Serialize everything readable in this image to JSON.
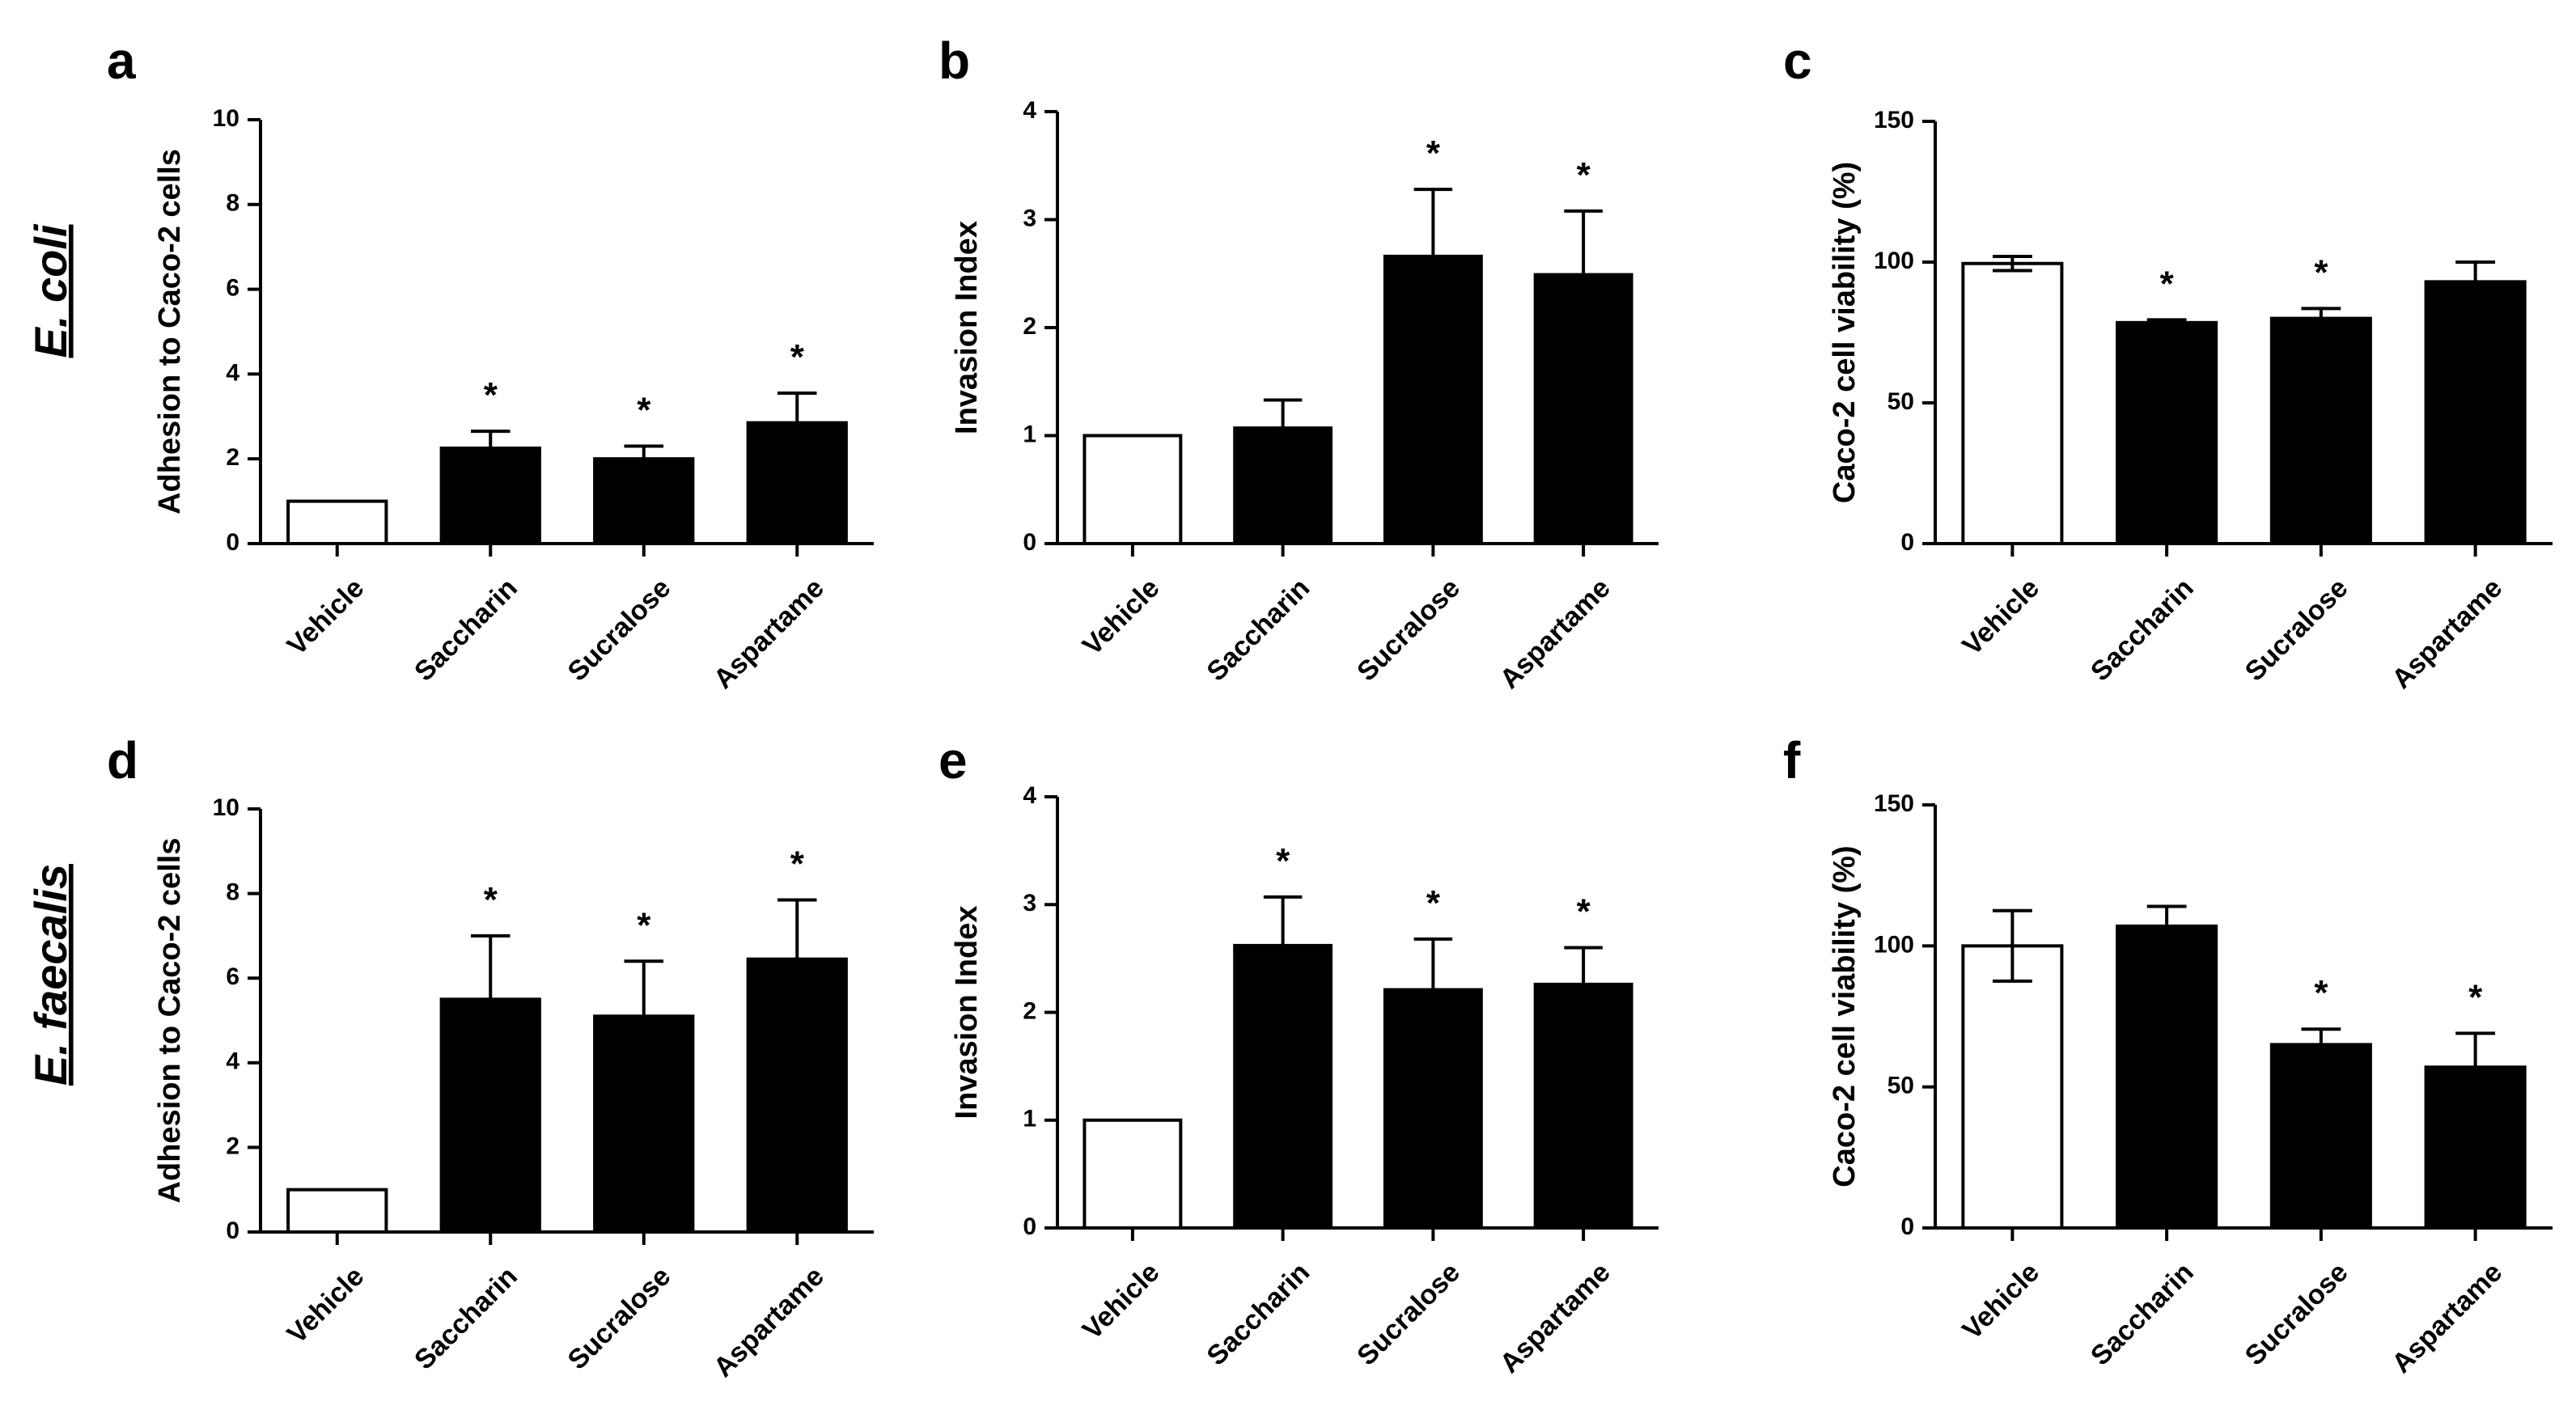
{
  "row_labels": [
    "E. coli",
    "E. faecalis"
  ],
  "chart_data": [
    {
      "type": "bar",
      "panel": "a",
      "row": 0,
      "title": "",
      "xlabel": "",
      "ylabel": "Adhesion to Caco-2 cells",
      "ylim": [
        0,
        10
      ],
      "yticks": [
        0,
        2,
        4,
        6,
        8,
        10
      ],
      "categories": [
        "Vehicle",
        "Saccharin",
        "Sucralose",
        "Aspartame"
      ],
      "values": [
        1.0,
        2.25,
        2.0,
        2.85
      ],
      "errors": [
        0,
        0.4,
        0.3,
        0.7
      ],
      "significant": [
        false,
        true,
        true,
        true
      ],
      "fill": [
        "#ffffff",
        "#000000",
        "#000000",
        "#000000"
      ],
      "marker": "*"
    },
    {
      "type": "bar",
      "panel": "b",
      "row": 0,
      "title": "",
      "xlabel": "",
      "ylabel": "Invasion Index",
      "ylim": [
        0,
        4
      ],
      "yticks": [
        0,
        1,
        2,
        3,
        4
      ],
      "categories": [
        "Vehicle",
        "Saccharin",
        "Sucralose",
        "Aspartame"
      ],
      "values": [
        1.0,
        1.07,
        2.66,
        2.49
      ],
      "errors": [
        0,
        0.26,
        0.62,
        0.59
      ],
      "significant": [
        false,
        false,
        true,
        true
      ],
      "fill": [
        "#ffffff",
        "#000000",
        "#000000",
        "#000000"
      ],
      "marker": "*"
    },
    {
      "type": "bar",
      "panel": "c",
      "row": 0,
      "title": "",
      "xlabel": "",
      "ylabel": "Caco-2 cell viability (%)",
      "ylim": [
        0,
        150
      ],
      "yticks": [
        0,
        50,
        100,
        150
      ],
      "categories": [
        "Vehicle",
        "Saccharin",
        "Sucralose",
        "Aspartame"
      ],
      "values": [
        99.5,
        78.5,
        80.0,
        93.0
      ],
      "errors": [
        2.5,
        1.0,
        3.5,
        7.0
      ],
      "significant": [
        false,
        true,
        true,
        false
      ],
      "fill": [
        "#ffffff",
        "#000000",
        "#000000",
        "#000000"
      ],
      "marker": "*"
    },
    {
      "type": "bar",
      "panel": "d",
      "row": 1,
      "title": "",
      "xlabel": "",
      "ylabel": "Adhesion to Caco-2 cells",
      "ylim": [
        0,
        10
      ],
      "yticks": [
        0,
        2,
        4,
        6,
        8,
        10
      ],
      "categories": [
        "Vehicle",
        "Saccharin",
        "Sucralose",
        "Aspartame"
      ],
      "values": [
        1.0,
        5.5,
        5.1,
        6.45
      ],
      "errors": [
        0,
        1.5,
        1.3,
        1.4
      ],
      "significant": [
        false,
        true,
        true,
        true
      ],
      "fill": [
        "#ffffff",
        "#000000",
        "#000000",
        "#000000"
      ],
      "marker": "*"
    },
    {
      "type": "bar",
      "panel": "e",
      "row": 1,
      "title": "",
      "xlabel": "",
      "ylabel": "Invasion Index",
      "ylim": [
        0,
        4
      ],
      "yticks": [
        0,
        1,
        2,
        3,
        4
      ],
      "categories": [
        "Vehicle",
        "Saccharin",
        "Sucralose",
        "Aspartame"
      ],
      "values": [
        1.0,
        2.62,
        2.21,
        2.26
      ],
      "errors": [
        0,
        0.45,
        0.47,
        0.34
      ],
      "significant": [
        false,
        true,
        true,
        true
      ],
      "fill": [
        "#ffffff",
        "#000000",
        "#000000",
        "#000000"
      ],
      "marker": "*"
    },
    {
      "type": "bar",
      "panel": "f",
      "row": 1,
      "title": "",
      "xlabel": "",
      "ylabel": "Caco-2 cell viability (%)",
      "ylim": [
        0,
        150
      ],
      "yticks": [
        0,
        50,
        100,
        150
      ],
      "categories": [
        "Vehicle",
        "Saccharin",
        "Sucralose",
        "Aspartame"
      ],
      "values": [
        100.0,
        107.0,
        65.0,
        57.0
      ],
      "errors": [
        12.5,
        7.0,
        5.5,
        12.0
      ],
      "significant": [
        false,
        false,
        true,
        true
      ],
      "fill": [
        "#ffffff",
        "#000000",
        "#000000",
        "#000000"
      ],
      "marker": "*"
    }
  ]
}
